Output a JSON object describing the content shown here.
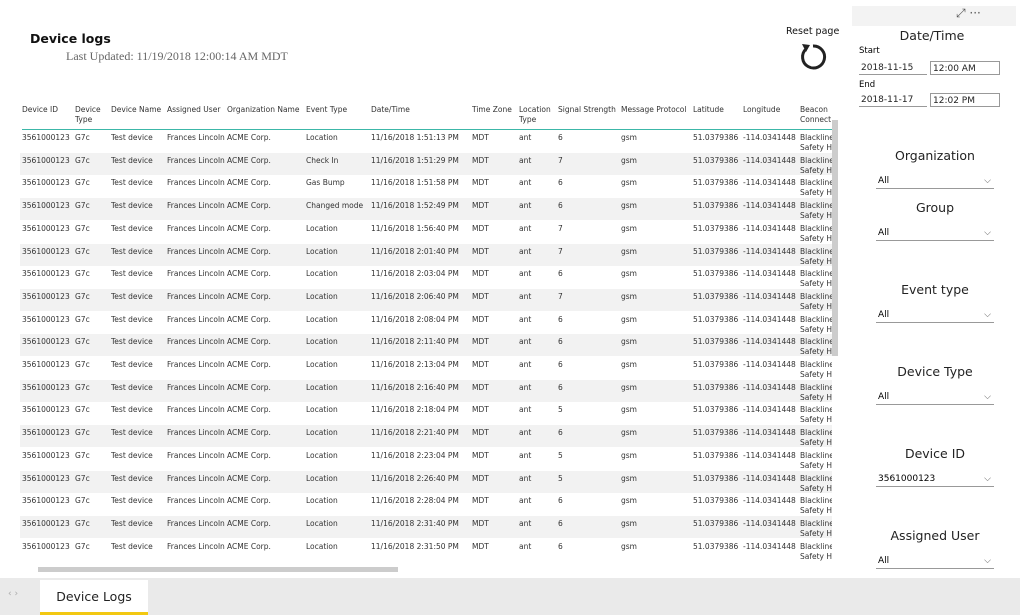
{
  "header": {
    "title": "Device logs",
    "last_updated": "Last Updated: 11/19/2018 12:00:14 AM MDT",
    "reset": "Reset page"
  },
  "table": {
    "columns": [
      "Device ID",
      "Device Type",
      "Device Name",
      "Assigned User",
      "Organization Name",
      "Event Type",
      "Date/Time",
      "Time Zone",
      "Location Type",
      "Signal Strength",
      "Message Protocol",
      "Latitude",
      "Longitude",
      "Beacon Connect"
    ],
    "rows": [
      [
        "3561000123",
        "G7c",
        "Test device",
        "Frances Lincoln",
        "ACME Corp.",
        "Location",
        "11/16/2018 1:51:13 PM",
        "MDT",
        "ant",
        "6",
        "gsm",
        "51.0379386",
        "-114.0341448",
        "Blackline Safety H"
      ],
      [
        "3561000123",
        "G7c",
        "Test device",
        "Frances Lincoln",
        "ACME Corp.",
        "Check In",
        "11/16/2018 1:51:29 PM",
        "MDT",
        "ant",
        "7",
        "gsm",
        "51.0379386",
        "-114.0341448",
        "Blackline Safety H"
      ],
      [
        "3561000123",
        "G7c",
        "Test device",
        "Frances Lincoln",
        "ACME Corp.",
        "Gas Bump",
        "11/16/2018 1:51:58 PM",
        "MDT",
        "ant",
        "6",
        "gsm",
        "51.0379386",
        "-114.0341448",
        "Blackline Safety H"
      ],
      [
        "3561000123",
        "G7c",
        "Test device",
        "Frances Lincoln",
        "ACME Corp.",
        "Changed mode",
        "11/16/2018 1:52:49 PM",
        "MDT",
        "ant",
        "6",
        "gsm",
        "51.0379386",
        "-114.0341448",
        "Blackline Safety H"
      ],
      [
        "3561000123",
        "G7c",
        "Test device",
        "Frances Lincoln",
        "ACME Corp.",
        "Location",
        "11/16/2018 1:56:40 PM",
        "MDT",
        "ant",
        "7",
        "gsm",
        "51.0379386",
        "-114.0341448",
        "Blackline Safety H"
      ],
      [
        "3561000123",
        "G7c",
        "Test device",
        "Frances Lincoln",
        "ACME Corp.",
        "Location",
        "11/16/2018 2:01:40 PM",
        "MDT",
        "ant",
        "7",
        "gsm",
        "51.0379386",
        "-114.0341448",
        "Blackline Safety H"
      ],
      [
        "3561000123",
        "G7c",
        "Test device",
        "Frances Lincoln",
        "ACME Corp.",
        "Location",
        "11/16/2018 2:03:04 PM",
        "MDT",
        "ant",
        "6",
        "gsm",
        "51.0379386",
        "-114.0341448",
        "Blackline Safety H"
      ],
      [
        "3561000123",
        "G7c",
        "Test device",
        "Frances Lincoln",
        "ACME Corp.",
        "Location",
        "11/16/2018 2:06:40 PM",
        "MDT",
        "ant",
        "7",
        "gsm",
        "51.0379386",
        "-114.0341448",
        "Blackline Safety H"
      ],
      [
        "3561000123",
        "G7c",
        "Test device",
        "Frances Lincoln",
        "ACME Corp.",
        "Location",
        "11/16/2018 2:08:04 PM",
        "MDT",
        "ant",
        "6",
        "gsm",
        "51.0379386",
        "-114.0341448",
        "Blackline Safety H"
      ],
      [
        "3561000123",
        "G7c",
        "Test device",
        "Frances Lincoln",
        "ACME Corp.",
        "Location",
        "11/16/2018 2:11:40 PM",
        "MDT",
        "ant",
        "6",
        "gsm",
        "51.0379386",
        "-114.0341448",
        "Blackline Safety H"
      ],
      [
        "3561000123",
        "G7c",
        "Test device",
        "Frances Lincoln",
        "ACME Corp.",
        "Location",
        "11/16/2018 2:13:04 PM",
        "MDT",
        "ant",
        "6",
        "gsm",
        "51.0379386",
        "-114.0341448",
        "Blackline Safety H"
      ],
      [
        "3561000123",
        "G7c",
        "Test device",
        "Frances Lincoln",
        "ACME Corp.",
        "Location",
        "11/16/2018 2:16:40 PM",
        "MDT",
        "ant",
        "6",
        "gsm",
        "51.0379386",
        "-114.0341448",
        "Blackline Safety H"
      ],
      [
        "3561000123",
        "G7c",
        "Test device",
        "Frances Lincoln",
        "ACME Corp.",
        "Location",
        "11/16/2018 2:18:04 PM",
        "MDT",
        "ant",
        "5",
        "gsm",
        "51.0379386",
        "-114.0341448",
        "Blackline Safety H"
      ],
      [
        "3561000123",
        "G7c",
        "Test device",
        "Frances Lincoln",
        "ACME Corp.",
        "Location",
        "11/16/2018 2:21:40 PM",
        "MDT",
        "ant",
        "6",
        "gsm",
        "51.0379386",
        "-114.0341448",
        "Blackline Safety H"
      ],
      [
        "3561000123",
        "G7c",
        "Test device",
        "Frances Lincoln",
        "ACME Corp.",
        "Location",
        "11/16/2018 2:23:04 PM",
        "MDT",
        "ant",
        "5",
        "gsm",
        "51.0379386",
        "-114.0341448",
        "Blackline Safety H"
      ],
      [
        "3561000123",
        "G7c",
        "Test device",
        "Frances Lincoln",
        "ACME Corp.",
        "Location",
        "11/16/2018 2:26:40 PM",
        "MDT",
        "ant",
        "5",
        "gsm",
        "51.0379386",
        "-114.0341448",
        "Blackline Safety H"
      ],
      [
        "3561000123",
        "G7c",
        "Test device",
        "Frances Lincoln",
        "ACME Corp.",
        "Location",
        "11/16/2018 2:28:04 PM",
        "MDT",
        "ant",
        "6",
        "gsm",
        "51.0379386",
        "-114.0341448",
        "Blackline Safety H"
      ],
      [
        "3561000123",
        "G7c",
        "Test device",
        "Frances Lincoln",
        "ACME Corp.",
        "Location",
        "11/16/2018 2:31:40 PM",
        "MDT",
        "ant",
        "6",
        "gsm",
        "51.0379386",
        "-114.0341448",
        "Blackline Safety H"
      ],
      [
        "3561000123",
        "G7c",
        "Test device",
        "Frances Lincoln",
        "ACME Corp.",
        "Location",
        "11/16/2018 2:31:50 PM",
        "MDT",
        "ant",
        "6",
        "gsm",
        "51.0379386",
        "-114.0341448",
        "Blackline Safety H"
      ]
    ]
  },
  "filters": {
    "datetime": {
      "title": "Date/Time",
      "start_label": "Start",
      "start_date": "2018-11-15",
      "start_time": "12:00 AM",
      "end_label": "End",
      "end_date": "2018-11-17",
      "end_time": "12:02 PM"
    },
    "slicers": [
      {
        "title": "Organization",
        "value": "All"
      },
      {
        "title": "Group",
        "value": "All"
      },
      {
        "title": "Event type",
        "value": "All"
      },
      {
        "title": "Device Type",
        "value": "All"
      },
      {
        "title": "Device ID",
        "value": "3561000123"
      },
      {
        "title": "Assigned User",
        "value": "All"
      }
    ]
  },
  "tabs": [
    "Device Logs"
  ]
}
